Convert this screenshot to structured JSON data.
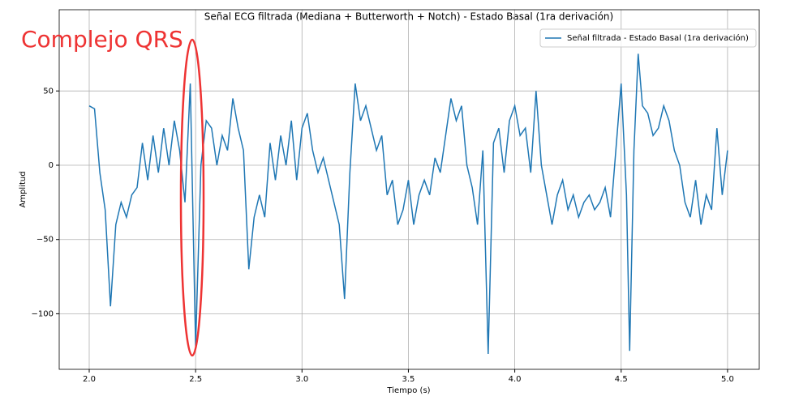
{
  "chart_data": {
    "type": "line",
    "title": "Señal ECG filtrada (Mediana + Butterworth + Notch) - Estado Basal (1ra derivación)",
    "x_label": "Tiempo (s)",
    "y_label": "Amplitud",
    "x": [
      2.0,
      2.025,
      2.05,
      2.075,
      2.1,
      2.125,
      2.15,
      2.175,
      2.2,
      2.225,
      2.25,
      2.275,
      2.3,
      2.325,
      2.35,
      2.375,
      2.4,
      2.425,
      2.45,
      2.475,
      2.5,
      2.525,
      2.55,
      2.575,
      2.6,
      2.625,
      2.65,
      2.675,
      2.7,
      2.725,
      2.75,
      2.775,
      2.8,
      2.825,
      2.85,
      2.875,
      2.9,
      2.925,
      2.95,
      2.975,
      3.0,
      3.025,
      3.05,
      3.075,
      3.1,
      3.125,
      3.15,
      3.175,
      3.2,
      3.225,
      3.25,
      3.275,
      3.3,
      3.325,
      3.35,
      3.375,
      3.4,
      3.425,
      3.45,
      3.475,
      3.5,
      3.525,
      3.55,
      3.575,
      3.6,
      3.625,
      3.65,
      3.675,
      3.7,
      3.725,
      3.75,
      3.775,
      3.8,
      3.825,
      3.85,
      3.875,
      3.9,
      3.925,
      3.95,
      3.975,
      4.0,
      4.025,
      4.05,
      4.075,
      4.1,
      4.125,
      4.15,
      4.175,
      4.2,
      4.225,
      4.25,
      4.275,
      4.3,
      4.325,
      4.35,
      4.375,
      4.4,
      4.425,
      4.45,
      4.475,
      4.5,
      4.525,
      4.54,
      4.56,
      4.58,
      4.6,
      4.625,
      4.65,
      4.675,
      4.7,
      4.725,
      4.75,
      4.775,
      4.8,
      4.825,
      4.85,
      4.875,
      4.9,
      4.925,
      4.95,
      4.975,
      5.0
    ],
    "series": [
      {
        "name": "Señal filtrada - Estado Basal (1ra derivación)",
        "color": "#1f77b4",
        "values": [
          40,
          38,
          -5,
          -30,
          -95,
          -40,
          -25,
          -35,
          -20,
          -15,
          15,
          -10,
          20,
          -5,
          25,
          0,
          30,
          10,
          -25,
          55,
          -122,
          0,
          30,
          25,
          0,
          20,
          10,
          45,
          25,
          10,
          -70,
          -35,
          -20,
          -35,
          15,
          -10,
          20,
          0,
          30,
          -10,
          25,
          35,
          10,
          -5,
          5,
          -10,
          -25,
          -40,
          -90,
          -5,
          55,
          30,
          40,
          25,
          10,
          20,
          -20,
          -10,
          -40,
          -30,
          -10,
          -40,
          -20,
          -10,
          -20,
          5,
          -5,
          20,
          45,
          30,
          40,
          0,
          -15,
          -40,
          10,
          -127,
          15,
          25,
          -5,
          30,
          40,
          20,
          25,
          -5,
          50,
          0,
          -20,
          -40,
          -20,
          -10,
          -30,
          -20,
          -35,
          -25,
          -20,
          -30,
          -25,
          -15,
          -35,
          10,
          55,
          -20,
          -125,
          10,
          75,
          40,
          35,
          20,
          25,
          40,
          30,
          10,
          0,
          -25,
          -35,
          -10,
          -40,
          -20,
          -30,
          25,
          -20,
          10
        ]
      }
    ],
    "xlim": [
      1.859,
      5.149
    ],
    "ylim": [
      -137.4,
      104.7
    ],
    "xticks": [
      {
        "value": 2,
        "label": "2.0"
      },
      {
        "value": 2.5,
        "label": "2.5"
      },
      {
        "value": 3,
        "label": "3.0"
      },
      {
        "value": 3.5,
        "label": "3.5"
      },
      {
        "value": 4,
        "label": "4.0"
      },
      {
        "value": 4.5,
        "label": "4.5"
      },
      {
        "value": 5,
        "label": "5.0"
      }
    ],
    "yticks": [
      {
        "value": -100,
        "label": "−100"
      },
      {
        "value": -50,
        "label": "−50"
      },
      0,
      50
    ],
    "grid": true,
    "legend": "upper right",
    "annotation": "Complejo QRS",
    "annotation_color": "#ee3333"
  }
}
